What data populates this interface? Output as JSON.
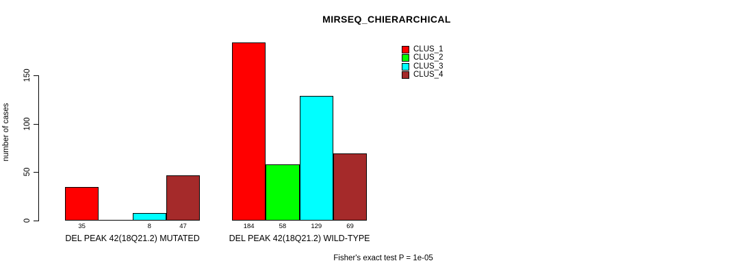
{
  "title": "MIRSEQ_CHIERARCHICAL",
  "footer": "Fisher's exact test P = 1e-05",
  "legend": {
    "entries": [
      {
        "label": "CLUS_1",
        "color": "#ff0000"
      },
      {
        "label": "CLUS_2",
        "color": "#00ff00"
      },
      {
        "label": "CLUS_3",
        "color": "#00ffff"
      },
      {
        "label": "CLUS_4",
        "color": "#a52a2a"
      }
    ]
  },
  "chart_data": {
    "type": "bar",
    "title": "MIRSEQ_CHIERARCHICAL",
    "xlabel": "",
    "ylabel": "number of cases",
    "ylim": [
      0,
      185
    ],
    "yticks": [
      0,
      50,
      100,
      150
    ],
    "grid": false,
    "legend_position": "top-right",
    "categories": [
      "DEL PEAK 42(18Q21.2) MUTATED",
      "DEL PEAK 42(18Q21.2) WILD-TYPE"
    ],
    "series": [
      {
        "name": "CLUS_1",
        "color": "#ff0000",
        "values": [
          35,
          184
        ]
      },
      {
        "name": "CLUS_2",
        "color": "#00ff00",
        "values": [
          0,
          58
        ]
      },
      {
        "name": "CLUS_3",
        "color": "#00ffff",
        "values": [
          8,
          129
        ]
      },
      {
        "name": "CLUS_4",
        "color": "#a52a2a",
        "values": [
          47,
          69
        ]
      }
    ],
    "bar_value_labels": [
      [
        "35",
        "",
        "8",
        "47"
      ],
      [
        "184",
        "58",
        "129",
        "69"
      ]
    ],
    "annotation": "Fisher's exact test P = 1e-05"
  }
}
